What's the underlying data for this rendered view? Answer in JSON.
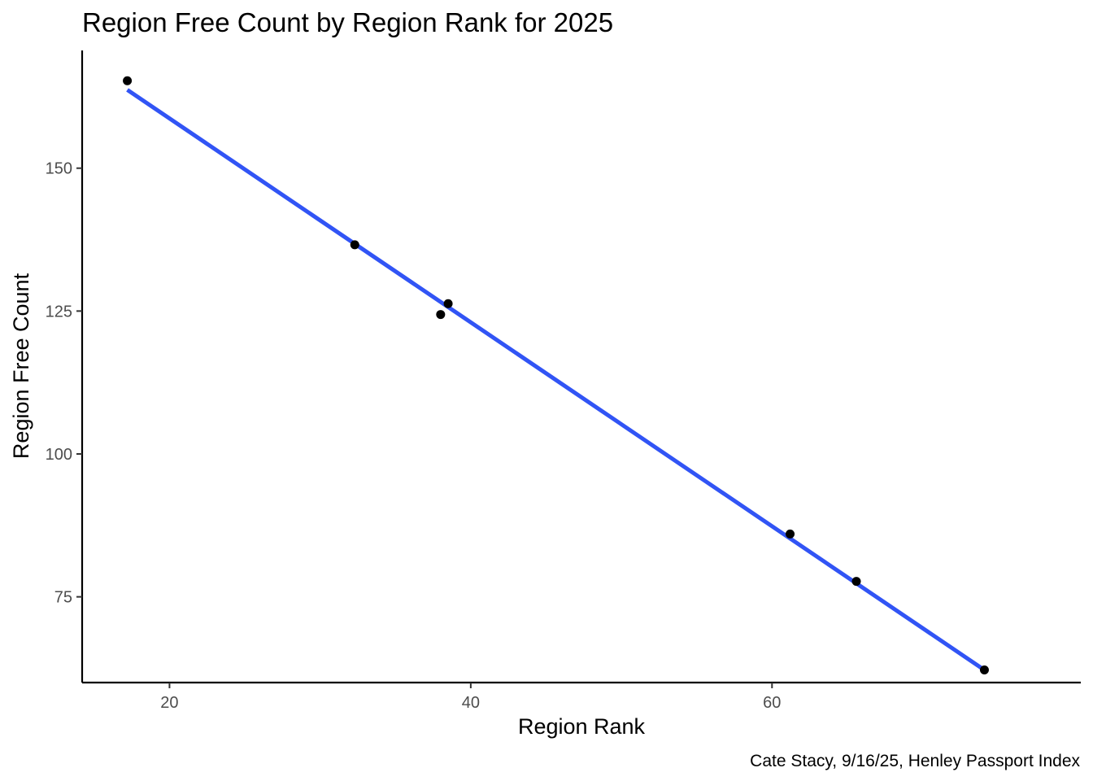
{
  "chart_data": {
    "type": "scatter",
    "title": "Region Free Count by Region Rank for 2025",
    "xlabel": "Region Rank",
    "ylabel": "Region Free Count",
    "caption": "Cate Stacy, 9/16/25, Henley Passport Index",
    "xlim": [
      14.2,
      80.5
    ],
    "ylim": [
      60.0,
      170.6
    ],
    "x_ticks": [
      20,
      40,
      60
    ],
    "x_tick_labels": [
      "20",
      "40",
      "60"
    ],
    "y_ticks": [
      75,
      100,
      125,
      150
    ],
    "y_tick_labels": [
      "75",
      "100",
      "125",
      "150"
    ],
    "grid": false,
    "points": [
      {
        "x": 17.2,
        "y": 165.3
      },
      {
        "x": 32.3,
        "y": 136.6
      },
      {
        "x": 38.0,
        "y": 124.4
      },
      {
        "x": 38.5,
        "y": 126.3
      },
      {
        "x": 61.2,
        "y": 86.0
      },
      {
        "x": 65.6,
        "y": 77.7
      },
      {
        "x": 74.1,
        "y": 62.2
      }
    ],
    "fit_line": {
      "type": "linear",
      "color": "#3154f5",
      "start": {
        "x": 17.2,
        "y": 163.7
      },
      "end": {
        "x": 74.1,
        "y": 62.2
      }
    },
    "point_color": "#000000"
  }
}
